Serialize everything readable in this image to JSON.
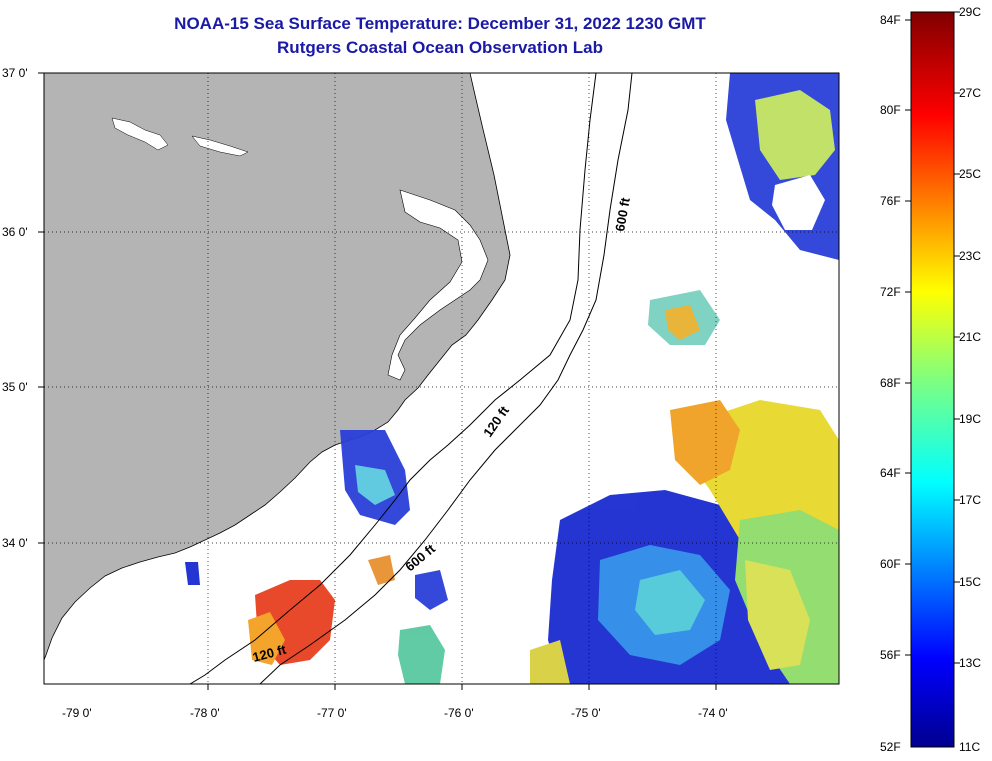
{
  "header": {
    "title": "NOAA-15 Sea Surface Temperature:  December 31, 2022 1230 GMT",
    "subtitle": "Rutgers Coastal Ocean Observation Lab"
  },
  "map": {
    "lat_labels": [
      "37 0'",
      "36 0'",
      "35 0'",
      "34 0'"
    ],
    "lon_labels": [
      "-79 0'",
      "-78 0'",
      "-77 0'",
      "-76 0'",
      "-75 0'",
      "-74 0'"
    ],
    "isobaths": [
      {
        "label": "600 ft"
      },
      {
        "label": "120 ft"
      },
      {
        "label": "600 ft"
      },
      {
        "label": "120 ft"
      }
    ],
    "colors": {
      "land": "#b4b4b4",
      "ocean_nodata": "#ffffff",
      "cold": "#00009b",
      "warm": "#ff3a00"
    }
  },
  "colorbar": {
    "fahrenheit_labels": [
      "84F",
      "80F",
      "76F",
      "72F",
      "68F",
      "64F",
      "60F",
      "56F",
      "52F"
    ],
    "celsius_labels": [
      "29C",
      "27C",
      "25C",
      "23C",
      "21C",
      "19C",
      "17C",
      "15C",
      "13C",
      "11C"
    ]
  }
}
